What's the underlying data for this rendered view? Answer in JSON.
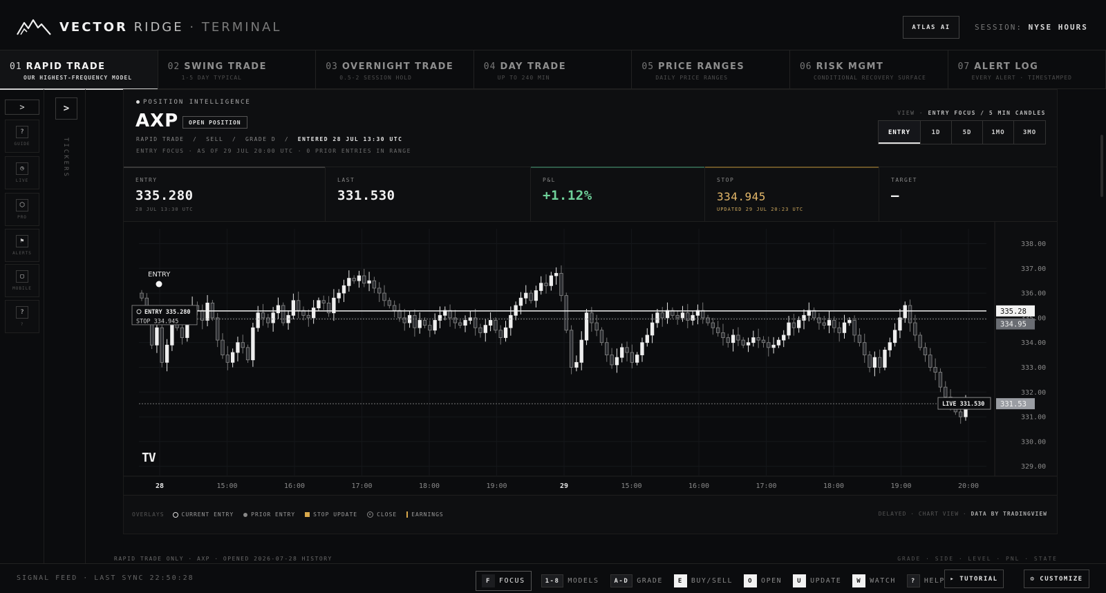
{
  "header": {
    "brand_primary": "VECTOR",
    "brand_secondary": "RIDGE",
    "brand_sep": "·",
    "brand_tertiary": "TERMINAL",
    "atlas_label": "ATLAS AI",
    "session_label": "SESSION:",
    "session_value": "NYSE HOURS"
  },
  "tabs": [
    {
      "num": "01",
      "title": "RAPID TRADE",
      "sub": "OUR HIGHEST-FREQUENCY MODEL",
      "active": true
    },
    {
      "num": "02",
      "title": "SWING TRADE",
      "sub": "1-5 DAY TYPICAL"
    },
    {
      "num": "03",
      "title": "OVERNIGHT TRADE",
      "sub": "0.5-2 SESSION HOLD"
    },
    {
      "num": "04",
      "title": "DAY TRADE",
      "sub": "UP TO 240 MIN"
    },
    {
      "num": "05",
      "title": "PRICE RANGES",
      "sub": "DAILY PRICE RANGES"
    },
    {
      "num": "06",
      "title": "RISK MGMT",
      "sub": "CONDITIONAL RECOVERY SURFACE"
    },
    {
      "num": "07",
      "title": "ALERT LOG",
      "sub": "EVERY ALERT · TIMESTAMPED"
    }
  ],
  "rail": {
    "toggle": ">",
    "items": [
      {
        "icon": "?",
        "label": "GUIDE"
      },
      {
        "icon": "◷",
        "label": "LIVE"
      },
      {
        "icon": "⬡",
        "label": "PRO"
      },
      {
        "icon": "⚑",
        "label": "ALERTS"
      },
      {
        "icon": "▢",
        "label": "MOBILE"
      },
      {
        "icon": "?",
        "label": "?"
      }
    ]
  },
  "tickers": {
    "toggle": ">",
    "label": "TICKERS"
  },
  "position": {
    "section_label": "POSITION INTELLIGENCE",
    "ticker": "AXP",
    "status": "OPEN POSITION",
    "meta_model": "RAPID TRADE",
    "meta_side": "SELL",
    "meta_grade": "GRADE D",
    "meta_entered": "ENTERED 28 JUL 13:30 UTC",
    "meta_sep": "/",
    "focus_line": "ENTRY FOCUS · AS OF 29 JUL 20:00 UTC · 0 PRIOR ENTRIES IN RANGE",
    "view_prefix": "VIEW ·",
    "view_value": "ENTRY FOCUS / 5 MIN CANDLES",
    "ranges": [
      "ENTRY",
      "1D",
      "5D",
      "1MO",
      "3MO"
    ],
    "active_range": "ENTRY"
  },
  "stats": {
    "entry": {
      "label": "ENTRY",
      "value": "335.280",
      "sub": "28 JUL 13:30 UTC"
    },
    "last": {
      "label": "LAST",
      "value": "331.530"
    },
    "pnl": {
      "label": "P&L",
      "value": "+1.12%"
    },
    "stop": {
      "label": "STOP",
      "value": "334.945",
      "sub": "UPDATED 29 JUL 20:23 UTC"
    },
    "target": {
      "label": "TARGET",
      "value": "—"
    }
  },
  "chart_data": {
    "type": "candlestick",
    "interval": "5 min",
    "y_ticks": [
      "338.00",
      "337.00",
      "336.00",
      "335.00",
      "334.00",
      "333.00",
      "332.00",
      "331.00",
      "330.00",
      "329.00"
    ],
    "ylim": [
      328.6,
      338.6
    ],
    "x_ticks": [
      "28",
      "15:00",
      "16:00",
      "17:00",
      "18:00",
      "19:00",
      "29",
      "15:00",
      "16:00",
      "17:00",
      "18:00",
      "19:00",
      "20:00"
    ],
    "entry_price": 335.28,
    "stop_price": 334.95,
    "live_price": 331.53,
    "entry_tag": "ENTRY 335.280",
    "stop_tag": "STOP 334.945",
    "live_tag": "LIVE 331.530",
    "entry_axis": "335.28",
    "stop_axis": "334.95",
    "live_axis": "331.53",
    "entry_marker_label": "ENTRY",
    "closes": [
      335.8,
      335.2,
      333.9,
      334.6,
      333.2,
      333.9,
      334.8,
      334.6,
      334.2,
      335.1,
      335.5,
      335.3,
      334.9,
      335.6,
      335.0,
      334.1,
      333.5,
      333.2,
      333.6,
      334.0,
      333.8,
      333.3,
      334.6,
      335.2,
      335.0,
      334.8,
      335.2,
      335.5,
      334.8,
      335.1,
      335.7,
      335.3,
      335.1,
      335.0,
      335.4,
      335.7,
      335.6,
      335.2,
      335.8,
      336.0,
      336.3,
      336.6,
      336.5,
      336.7,
      336.4,
      336.5,
      336.2,
      336.0,
      335.7,
      335.5,
      335.3,
      335.0,
      334.8,
      335.1,
      334.6,
      334.9,
      334.7,
      334.5,
      334.9,
      335.1,
      335.3,
      335.0,
      334.8,
      334.7,
      334.9,
      335.0,
      334.6,
      334.4,
      334.7,
      334.9,
      334.5,
      334.2,
      334.6,
      335.1,
      335.5,
      335.8,
      336.0,
      335.7,
      336.1,
      336.4,
      336.3,
      336.7,
      336.8,
      335.9,
      334.5,
      333.0,
      333.2,
      334.1,
      335.2,
      334.8,
      334.5,
      334.0,
      333.5,
      333.1,
      333.4,
      333.8,
      333.6,
      333.2,
      333.5,
      334.0,
      334.3,
      334.8,
      335.2,
      335.0,
      335.3,
      335.1,
      335.0,
      335.2,
      334.9,
      335.1,
      335.3,
      335.0,
      334.8,
      334.6,
      334.4,
      334.2,
      334.0,
      334.3,
      334.1,
      333.9,
      334.0,
      334.2,
      334.1,
      334.0,
      333.8,
      333.9,
      334.1,
      334.3,
      334.8,
      334.6,
      334.9,
      335.1,
      335.3,
      335.0,
      334.8,
      334.7,
      334.9,
      334.6,
      334.4,
      334.8,
      334.9,
      334.3,
      334.0,
      333.5,
      333.0,
      333.4,
      333.0,
      333.7,
      334.0,
      334.5,
      335.0,
      335.5,
      334.8,
      334.3,
      333.8,
      333.5,
      333.0,
      332.8,
      332.2,
      331.8,
      331.5,
      331.2,
      331.0,
      331.6
    ]
  },
  "legend": {
    "label": "OVERLAYS",
    "items": [
      "CURRENT ENTRY",
      "PRIOR ENTRY",
      "STOP UPDATE",
      "CLOSE",
      "EARNINGS"
    ],
    "right_prefix": "DELAYED · CHART VIEW",
    "right_value": "DATA BY TRADINGVIEW",
    "tv_logo": "TV"
  },
  "subfooter": {
    "left": "RAPID TRADE ONLY · AXP · OPENED 2026-07-28 HISTORY",
    "right": "GRADE · SIDE · LEVEL · PNL · STATE"
  },
  "footer": {
    "sync": "SIGNAL FEED · LAST SYNC 22:50:28",
    "shortcuts": [
      {
        "key": "F",
        "label": "FOCUS"
      },
      {
        "key": "1-8",
        "label": "MODELS"
      },
      {
        "key": "A-D",
        "label": "GRADE"
      },
      {
        "key": "E",
        "label": "BUY/SELL"
      },
      {
        "key": "O",
        "label": "OPEN"
      },
      {
        "key": "U",
        "label": "UPDATE"
      },
      {
        "key": "W",
        "label": "WATCH"
      },
      {
        "key": "?",
        "label": "HELP"
      }
    ],
    "tutorial": "▸ TUTORIAL",
    "customize": "⚙ CUSTOMIZE"
  },
  "colors": {
    "accent_green": "#6fd19a",
    "accent_amber": "#e4b86a",
    "background": "#0b0c0e"
  }
}
